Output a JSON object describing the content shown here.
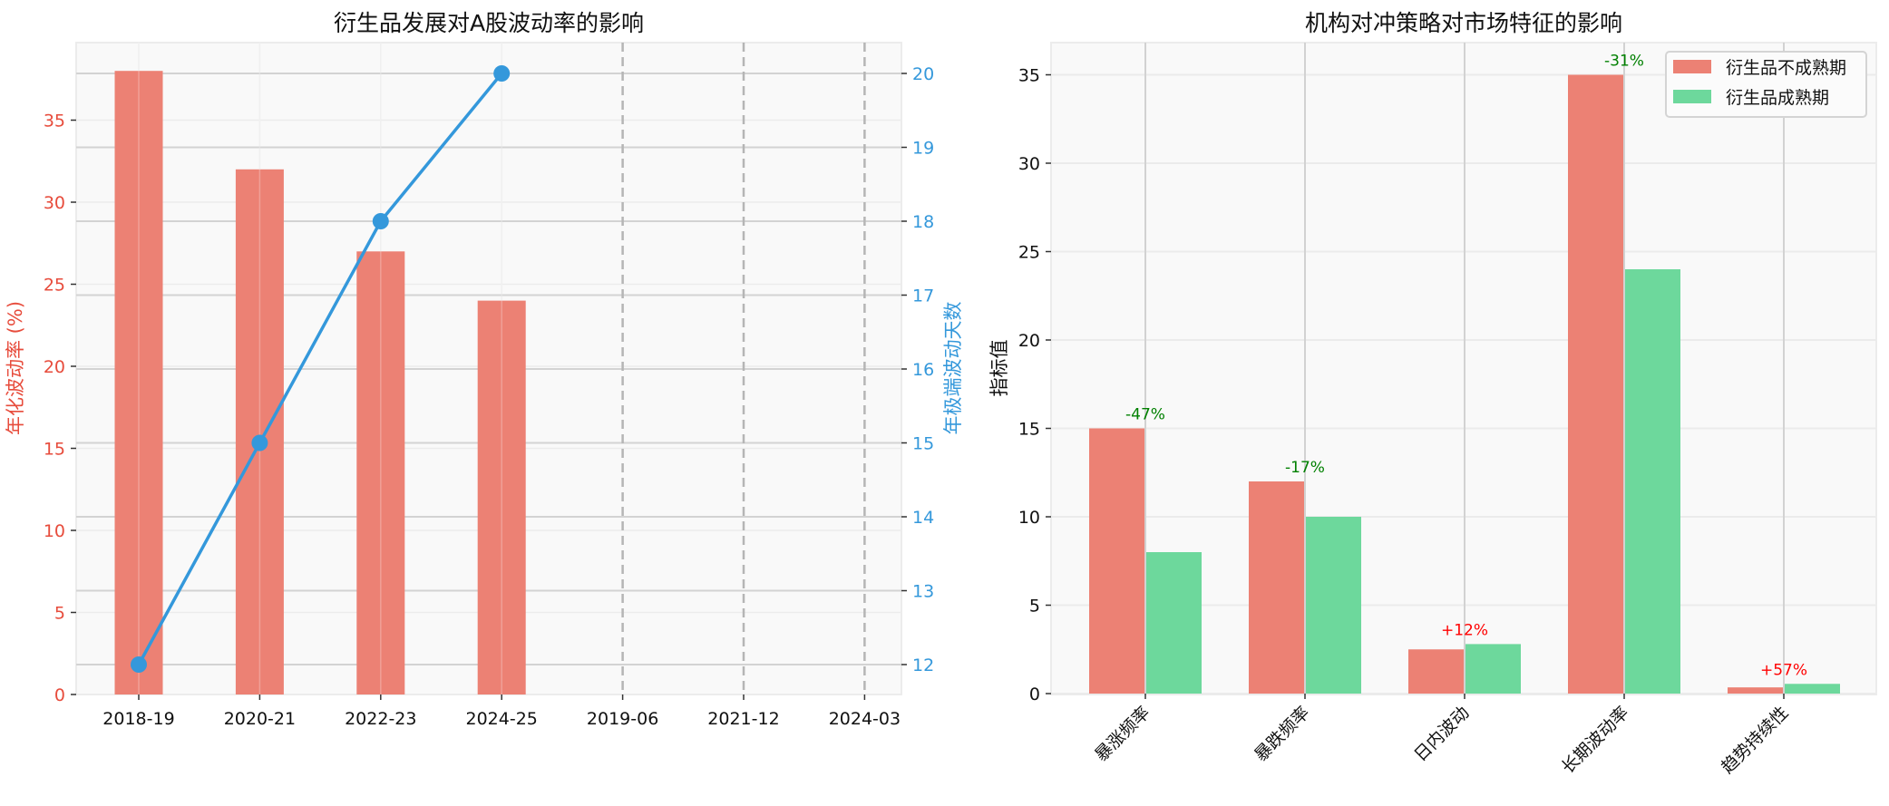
{
  "chart_data": [
    {
      "type": "bar+line",
      "title": "衍生品发展对A股波动率的影响",
      "xlabel": "",
      "ylabel": "年化波动率 (%)",
      "y2label": "年极端波动天数",
      "categories": [
        "2018-19",
        "2020-21",
        "2022-23",
        "2024-25",
        "2019-06",
        "2021-12",
        "2024-03"
      ],
      "series": [
        {
          "name": "年化波动率 (%)",
          "type": "bar",
          "axis": "left",
          "color": "#e74c3c",
          "x": [
            "2018-19",
            "2020-21",
            "2022-23",
            "2024-25"
          ],
          "values": [
            38,
            32,
            27,
            24
          ]
        },
        {
          "name": "年极端波动天数",
          "type": "line",
          "axis": "right",
          "color": "#3498db",
          "x": [
            "2018-19",
            "2020-21",
            "2022-23",
            "2024-25"
          ],
          "values": [
            12,
            15,
            18,
            20
          ]
        }
      ],
      "vlines": [
        {
          "x": "2019-06",
          "style": "dashed",
          "color": "#b0b0b0"
        },
        {
          "x": "2021-12",
          "style": "dashed",
          "color": "#b0b0b0"
        },
        {
          "x": "2024-03",
          "style": "dashed",
          "color": "#b0b0b0"
        }
      ],
      "ylim": [
        0,
        39.7
      ],
      "y2lim": [
        11.6,
        20.4
      ],
      "yticks": [
        0,
        5,
        10,
        15,
        20,
        25,
        30,
        35
      ],
      "y2ticks": [
        12,
        13,
        14,
        15,
        16,
        17,
        18,
        19,
        20
      ],
      "grid": true
    },
    {
      "type": "bar",
      "title": "机构对冲策略对市场特征的影响",
      "xlabel": "",
      "ylabel": "指标值",
      "categories": [
        "暴涨频率",
        "暴跌频率",
        "日内波动",
        "长期波动率",
        "趋势持续性"
      ],
      "series": [
        {
          "name": "衍生品不成熟期",
          "color": "#e74c3c",
          "values": [
            15,
            12,
            2.5,
            35,
            0.35
          ]
        },
        {
          "name": "衍生品成熟期",
          "color": "#2ecc71",
          "values": [
            8,
            10,
            2.8,
            24,
            0.55
          ]
        }
      ],
      "annotations": [
        {
          "category": "暴涨频率",
          "text": "-47%",
          "color": "#008000"
        },
        {
          "category": "暴跌频率",
          "text": "-17%",
          "color": "#008000"
        },
        {
          "category": "日内波动",
          "text": "+12%",
          "color": "#ff0000"
        },
        {
          "category": "长期波动率",
          "text": "-31%",
          "color": "#008000"
        },
        {
          "category": "趋势持续性",
          "text": "+57%",
          "color": "#ff0000"
        }
      ],
      "ylim": [
        0,
        36.75
      ],
      "yticks": [
        0,
        5,
        10,
        15,
        20,
        25,
        30,
        35
      ],
      "legend_position": "upper right",
      "grid": true
    }
  ],
  "left": {
    "title": "衍生品发展对A股波动率的影响",
    "ylabel": "年化波动率 (%)",
    "y2label": "年极端波动天数",
    "xticks": [
      "2018-19",
      "2020-21",
      "2022-23",
      "2024-25",
      "2019-06",
      "2021-12",
      "2024-03"
    ],
    "yticks": [
      "0",
      "5",
      "10",
      "15",
      "20",
      "25",
      "30",
      "35"
    ],
    "y2ticks": [
      "12",
      "13",
      "14",
      "15",
      "16",
      "17",
      "18",
      "19",
      "20"
    ]
  },
  "right": {
    "title": "机构对冲策略对市场特征的影响",
    "ylabel": "指标值",
    "xticks": [
      "暴涨频率",
      "暴跌频率",
      "日内波动",
      "长期波动率",
      "趋势持续性"
    ],
    "yticks": [
      "0",
      "5",
      "10",
      "15",
      "20",
      "25",
      "30",
      "35"
    ],
    "legend": [
      "衍生品不成熟期",
      "衍生品成熟期"
    ],
    "annotations": [
      "-47%",
      "-17%",
      "+12%",
      "-31%",
      "+57%"
    ]
  },
  "colors": {
    "bar_red": "#ec8174",
    "bar_green": "#6dd89c",
    "line_blue": "#3498db",
    "axis_red": "#e74c3c",
    "anno_green": "#008000",
    "anno_red": "#ff0000"
  }
}
